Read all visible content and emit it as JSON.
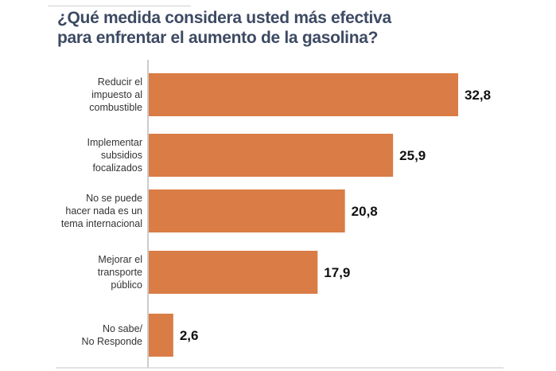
{
  "chart_data": {
    "type": "bar",
    "orientation": "horizontal",
    "title": "¿Qué medida considera usted más efectiva para enfrentar el aumento de la gasolina?",
    "title_lines": [
      "¿Qué medida considera usted más efectiva",
      "para enfrentar el aumento de la gasolina?"
    ],
    "categories": [
      [
        "Reducir el",
        "impuesto al",
        "combustible"
      ],
      [
        "Implementar",
        "subsidios",
        "focalizados"
      ],
      [
        "No se puede",
        "hacer nada es un",
        "tema internacional"
      ],
      [
        "Mejorar el",
        "transporte",
        "público"
      ],
      [
        "No sabe/",
        "No Responde"
      ]
    ],
    "values": [
      32.8,
      25.9,
      20.8,
      17.9,
      2.6
    ],
    "value_labels": [
      "32,8",
      "25,9",
      "20,8",
      "17,9",
      "2,6"
    ],
    "xlim": [
      0,
      32.8
    ],
    "grid": false,
    "colors": {
      "bar": "#d97c45",
      "title": "#3d4a63"
    }
  }
}
